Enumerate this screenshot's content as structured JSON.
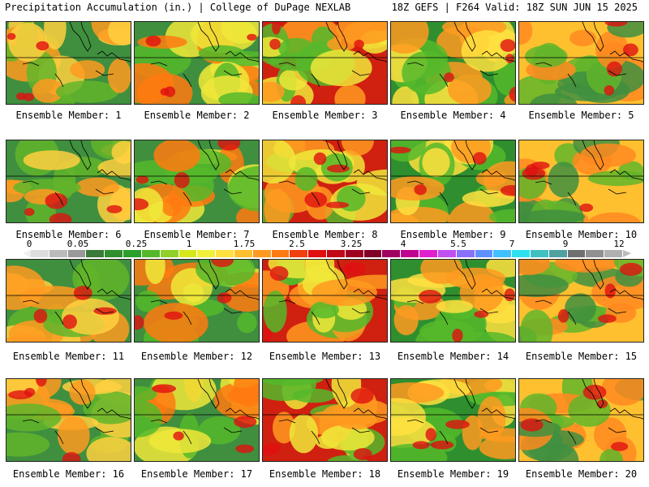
{
  "header": {
    "left": "Precipitation Accumulation (in.) | College of DuPage NEXLAB",
    "right": "18Z GEFS | F264 Valid: 18Z SUN JUN 15 2025"
  },
  "panels": [
    {
      "label": "Ensemble Member: 1"
    },
    {
      "label": "Ensemble Member: 2"
    },
    {
      "label": "Ensemble Member: 3"
    },
    {
      "label": "Ensemble Member: 4"
    },
    {
      "label": "Ensemble Member: 5"
    },
    {
      "label": "Ensemble Member: 6"
    },
    {
      "label": "Ensemble Member: 7"
    },
    {
      "label": "Ensemble Member: 8"
    },
    {
      "label": "Ensemble Member: 9"
    },
    {
      "label": "Ensemble Member: 10"
    },
    {
      "label": "Ensemble Member: 11"
    },
    {
      "label": "Ensemble Member: 12"
    },
    {
      "label": "Ensemble Member: 13"
    },
    {
      "label": "Ensemble Member: 14"
    },
    {
      "label": "Ensemble Member: 15"
    },
    {
      "label": "Ensemble Member: 16"
    },
    {
      "label": "Ensemble Member: 17"
    },
    {
      "label": "Ensemble Member: 18"
    },
    {
      "label": "Ensemble Member: 19"
    },
    {
      "label": "Ensemble Member: 20"
    }
  ],
  "colorbar": {
    "tick_labels": [
      "0",
      "0.05",
      "0.25",
      "1",
      "1.75",
      "2.5",
      "3.25",
      "4",
      "5.5",
      "7",
      "9",
      "12"
    ],
    "colors": [
      "#dddddd",
      "#bbbbbb",
      "#999999",
      "#3a7a3a",
      "#2f8f2f",
      "#2aa02a",
      "#55b82a",
      "#8fd12a",
      "#d6e81a",
      "#f0f03a",
      "#ffe040",
      "#ffc030",
      "#ff9a20",
      "#ff7a10",
      "#f04010",
      "#e01010",
      "#c00818",
      "#a00020",
      "#800028",
      "#a00060",
      "#c00090",
      "#e020d0",
      "#c050f0",
      "#8870f8",
      "#6090ff",
      "#40c0ff",
      "#30e0f0",
      "#40c0c0",
      "#50a0a0",
      "#707070",
      "#909090",
      "#b0b0b0"
    ]
  }
}
